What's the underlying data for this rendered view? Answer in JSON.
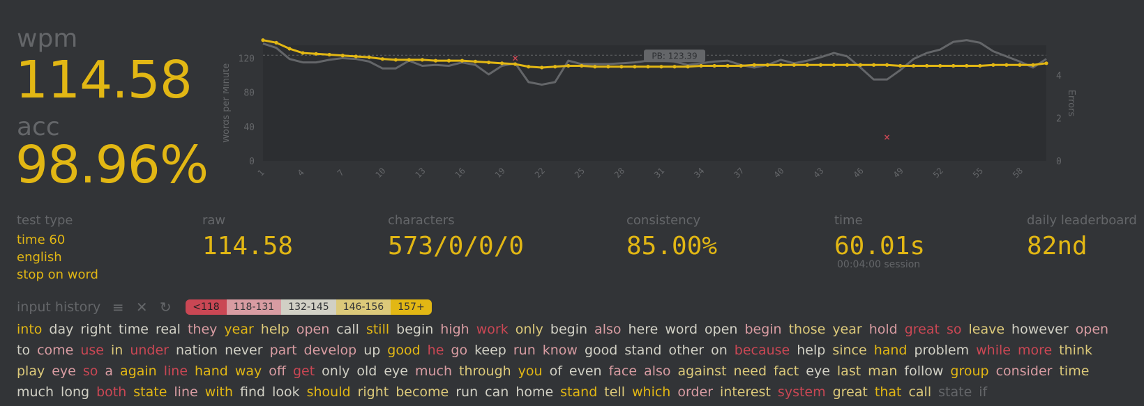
{
  "summary": {
    "wpm_label": "wpm",
    "wpm_value": "114.58",
    "acc_label": "acc",
    "acc_value": "98.96%"
  },
  "stats": {
    "test_type_label": "test type",
    "test_type_lines": [
      "time 60",
      "english",
      "stop on word"
    ],
    "raw_label": "raw",
    "raw_value": "114.58",
    "characters_label": "characters",
    "characters_value": "573/0/0/0",
    "consistency_label": "consistency",
    "consistency_value": "85.00%",
    "time_label": "time",
    "time_value": "60.01s",
    "session_text": "00:04:00 session",
    "leaderboard_label": "daily leaderboard",
    "leaderboard_value": "82nd"
  },
  "history": {
    "label": "input history",
    "icons": [
      "list-icon",
      "close-icon",
      "restart-icon"
    ],
    "legend": [
      {
        "label": "<118",
        "color": "#ca4754"
      },
      {
        "label": "118-131",
        "color": "#d89ca2"
      },
      {
        "label": "132-145",
        "color": "#d1d0c5"
      },
      {
        "label": "146-156",
        "color": "#dcc97a"
      },
      {
        "label": "157+",
        "color": "#e2b714"
      }
    ],
    "words": [
      [
        "into",
        "y"
      ],
      [
        "day",
        "w"
      ],
      [
        "right",
        "w"
      ],
      [
        "time",
        "w"
      ],
      [
        "real",
        "w"
      ],
      [
        "they",
        "p"
      ],
      [
        "year",
        "y"
      ],
      [
        "help",
        "ly"
      ],
      [
        "open",
        "p"
      ],
      [
        "call",
        "w"
      ],
      [
        "still",
        "y"
      ],
      [
        "begin",
        "w"
      ],
      [
        "high",
        "p"
      ],
      [
        "work",
        "r"
      ],
      [
        "only",
        "ly"
      ],
      [
        "begin",
        "w"
      ],
      [
        "also",
        "p"
      ],
      [
        "here",
        "w"
      ],
      [
        "word",
        "w"
      ],
      [
        "open",
        "w"
      ],
      [
        "begin",
        "p"
      ],
      [
        "those",
        "ly"
      ],
      [
        "year",
        "ly"
      ],
      [
        "hold",
        "p"
      ],
      [
        "great",
        "r"
      ],
      [
        "so",
        "r"
      ],
      [
        "leave",
        "ly"
      ],
      [
        "however",
        "w"
      ],
      [
        "open",
        "p"
      ],
      [
        "to",
        "w"
      ],
      [
        "come",
        "p"
      ],
      [
        "use",
        "r"
      ],
      [
        "in",
        "ly"
      ],
      [
        "under",
        "r"
      ],
      [
        "nation",
        "w"
      ],
      [
        "never",
        "w"
      ],
      [
        "part",
        "p"
      ],
      [
        "develop",
        "p"
      ],
      [
        "up",
        "w"
      ],
      [
        "good",
        "y"
      ],
      [
        "he",
        "r"
      ],
      [
        "go",
        "p"
      ],
      [
        "keep",
        "w"
      ],
      [
        "run",
        "p"
      ],
      [
        "know",
        "p"
      ],
      [
        "good",
        "w"
      ],
      [
        "stand",
        "w"
      ],
      [
        "other",
        "w"
      ],
      [
        "on",
        "w"
      ],
      [
        "because",
        "r"
      ],
      [
        "help",
        "w"
      ],
      [
        "since",
        "ly"
      ],
      [
        "hand",
        "y"
      ],
      [
        "problem",
        "w"
      ],
      [
        "while",
        "r"
      ],
      [
        "more",
        "r"
      ],
      [
        "think",
        "ly"
      ],
      [
        "play",
        "ly"
      ],
      [
        "eye",
        "p"
      ],
      [
        "so",
        "r"
      ],
      [
        "a",
        "p"
      ],
      [
        "again",
        "y"
      ],
      [
        "line",
        "r"
      ],
      [
        "hand",
        "y"
      ],
      [
        "way",
        "y"
      ],
      [
        "off",
        "p"
      ],
      [
        "get",
        "r"
      ],
      [
        "only",
        "w"
      ],
      [
        "old",
        "w"
      ],
      [
        "eye",
        "w"
      ],
      [
        "much",
        "p"
      ],
      [
        "through",
        "ly"
      ],
      [
        "you",
        "y"
      ],
      [
        "of",
        "w"
      ],
      [
        "even",
        "w"
      ],
      [
        "face",
        "p"
      ],
      [
        "also",
        "p"
      ],
      [
        "against",
        "ly"
      ],
      [
        "need",
        "ly"
      ],
      [
        "fact",
        "ly"
      ],
      [
        "eye",
        "w"
      ],
      [
        "last",
        "ly"
      ],
      [
        "man",
        "ly"
      ],
      [
        "follow",
        "w"
      ],
      [
        "group",
        "y"
      ],
      [
        "consider",
        "p"
      ],
      [
        "time",
        "ly"
      ],
      [
        "much",
        "w"
      ],
      [
        "long",
        "w"
      ],
      [
        "both",
        "r"
      ],
      [
        "state",
        "y"
      ],
      [
        "line",
        "p"
      ],
      [
        "with",
        "y"
      ],
      [
        "find",
        "w"
      ],
      [
        "look",
        "w"
      ],
      [
        "should",
        "y"
      ],
      [
        "right",
        "ly"
      ],
      [
        "become",
        "ly"
      ],
      [
        "run",
        "w"
      ],
      [
        "can",
        "w"
      ],
      [
        "home",
        "w"
      ],
      [
        "stand",
        "y"
      ],
      [
        "tell",
        "ly"
      ],
      [
        "which",
        "y"
      ],
      [
        "order",
        "p"
      ],
      [
        "interest",
        "ly"
      ],
      [
        "system",
        "r"
      ],
      [
        "great",
        "ly"
      ],
      [
        "that",
        "y"
      ],
      [
        "call",
        "ly"
      ],
      [
        "state",
        "g"
      ],
      [
        "if",
        "g"
      ]
    ]
  },
  "chart_data": {
    "type": "line",
    "x": [
      1,
      2,
      3,
      4,
      5,
      6,
      7,
      8,
      9,
      10,
      11,
      12,
      13,
      14,
      15,
      16,
      17,
      18,
      19,
      20,
      21,
      22,
      23,
      24,
      25,
      26,
      27,
      28,
      29,
      30,
      31,
      32,
      33,
      34,
      35,
      36,
      37,
      38,
      39,
      40,
      41,
      42,
      43,
      44,
      45,
      46,
      47,
      48,
      49,
      50,
      51,
      52,
      53,
      54,
      55,
      56,
      57,
      58,
      59,
      60
    ],
    "xticks": [
      1,
      4,
      7,
      10,
      13,
      16,
      19,
      22,
      25,
      28,
      31,
      34,
      37,
      40,
      43,
      46,
      49,
      52,
      55,
      58
    ],
    "ylabel": "Words per Minute",
    "y2label": "Errors",
    "ylim": [
      0,
      135
    ],
    "yticks": [
      0,
      40,
      80,
      120
    ],
    "y2lim": [
      0,
      5.4
    ],
    "y2ticks": [
      0,
      2,
      4
    ],
    "pb_label": "PB: 123.39",
    "pb_value": 123.39,
    "series": [
      {
        "color": "#e2b714",
        "values": [
          141,
          138,
          131,
          126,
          125,
          124,
          123,
          122,
          121,
          119,
          118,
          118,
          118,
          117,
          117,
          117,
          116,
          115,
          114,
          113,
          110,
          109,
          110,
          111,
          111,
          110,
          110,
          110,
          110,
          110,
          110,
          110,
          110,
          111,
          111,
          111,
          111,
          112,
          112,
          112,
          112,
          112,
          112,
          112,
          112,
          112,
          112,
          112,
          111,
          111,
          111,
          111,
          111,
          111,
          111,
          112,
          112,
          112,
          112,
          114
        ]
      },
      {
        "color": "#646669",
        "values": [
          137,
          132,
          119,
          115,
          115,
          118,
          120,
          119,
          116,
          108,
          108,
          117,
          111,
          112,
          111,
          115,
          112,
          101,
          111,
          114,
          92,
          89,
          92,
          117,
          113,
          113,
          113,
          114,
          115,
          117,
          117,
          116,
          112,
          114,
          116,
          117,
          112,
          109,
          112,
          118,
          114,
          117,
          121,
          126,
          122,
          109,
          95,
          95,
          106,
          119,
          126,
          130,
          139,
          141,
          138,
          128,
          122,
          116,
          109,
          119
        ]
      }
    ],
    "errors": [
      {
        "x": 20,
        "y": 4.8
      },
      {
        "x": 48,
        "y": 1.1
      }
    ]
  }
}
